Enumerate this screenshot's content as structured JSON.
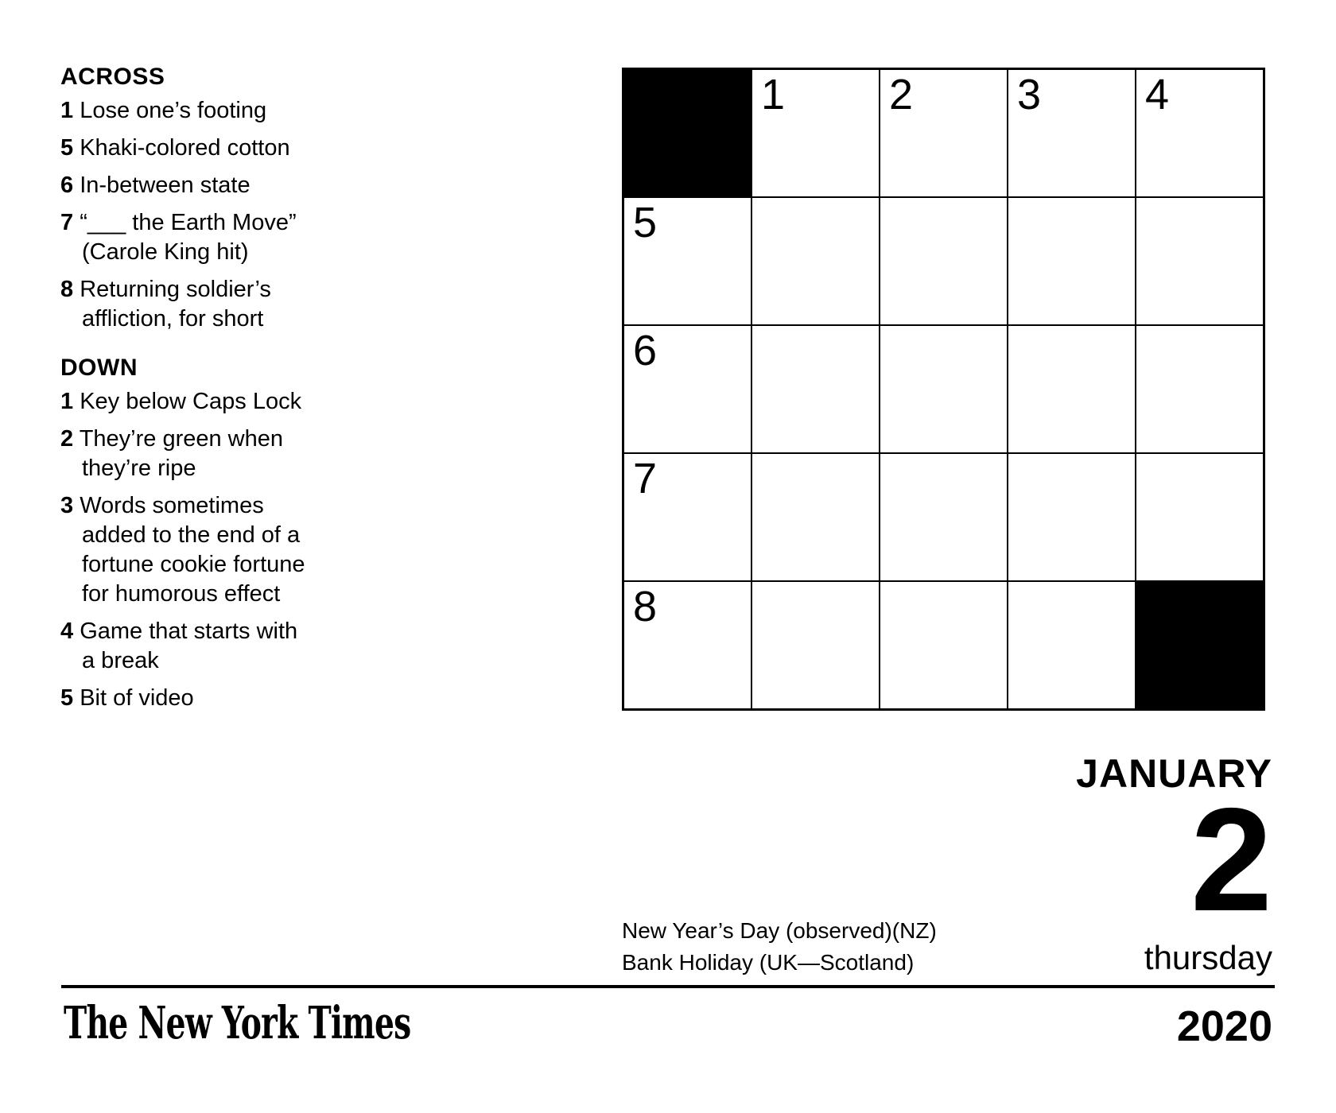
{
  "clues": {
    "across": {
      "heading": "ACROSS",
      "items": [
        {
          "num": "1",
          "text": "Lose one’s footing"
        },
        {
          "num": "5",
          "text": "Khaki-colored cotton"
        },
        {
          "num": "6",
          "text": "In-between state"
        },
        {
          "num": "7",
          "text": "“___ the Earth Move”\n(Carole King hit)"
        },
        {
          "num": "8",
          "text": "Returning soldier’s\naffliction, for short"
        }
      ]
    },
    "down": {
      "heading": "DOWN",
      "items": [
        {
          "num": "1",
          "text": "Key below Caps Lock"
        },
        {
          "num": "2",
          "text": "They’re green when\nthey’re ripe"
        },
        {
          "num": "3",
          "text": "Words sometimes\nadded to the end of a\nfortune cookie fortune\nfor humorous effect"
        },
        {
          "num": "4",
          "text": "Game that starts with\na break"
        },
        {
          "num": "5",
          "text": "Bit of video"
        }
      ]
    }
  },
  "grid": {
    "rows": 5,
    "cols": 5,
    "black_cells": [
      [
        0,
        0
      ],
      [
        4,
        4
      ]
    ],
    "numbers": [
      {
        "row": 0,
        "col": 1,
        "num": "1"
      },
      {
        "row": 0,
        "col": 2,
        "num": "2"
      },
      {
        "row": 0,
        "col": 3,
        "num": "3"
      },
      {
        "row": 0,
        "col": 4,
        "num": "4"
      },
      {
        "row": 1,
        "col": 0,
        "num": "5"
      },
      {
        "row": 2,
        "col": 0,
        "num": "6"
      },
      {
        "row": 3,
        "col": 0,
        "num": "7"
      },
      {
        "row": 4,
        "col": 0,
        "num": "8"
      }
    ]
  },
  "calendar": {
    "month": "JANUARY",
    "day": "2",
    "weekday": "thursday",
    "year": "2020",
    "holidays": [
      "New Year’s Day (observed)(NZ)",
      "Bank Holiday (UK—Scotland)"
    ]
  },
  "footer": {
    "publication": "The New York Times"
  },
  "colors": {
    "ink": "#000000",
    "paper": "#ffffff"
  }
}
